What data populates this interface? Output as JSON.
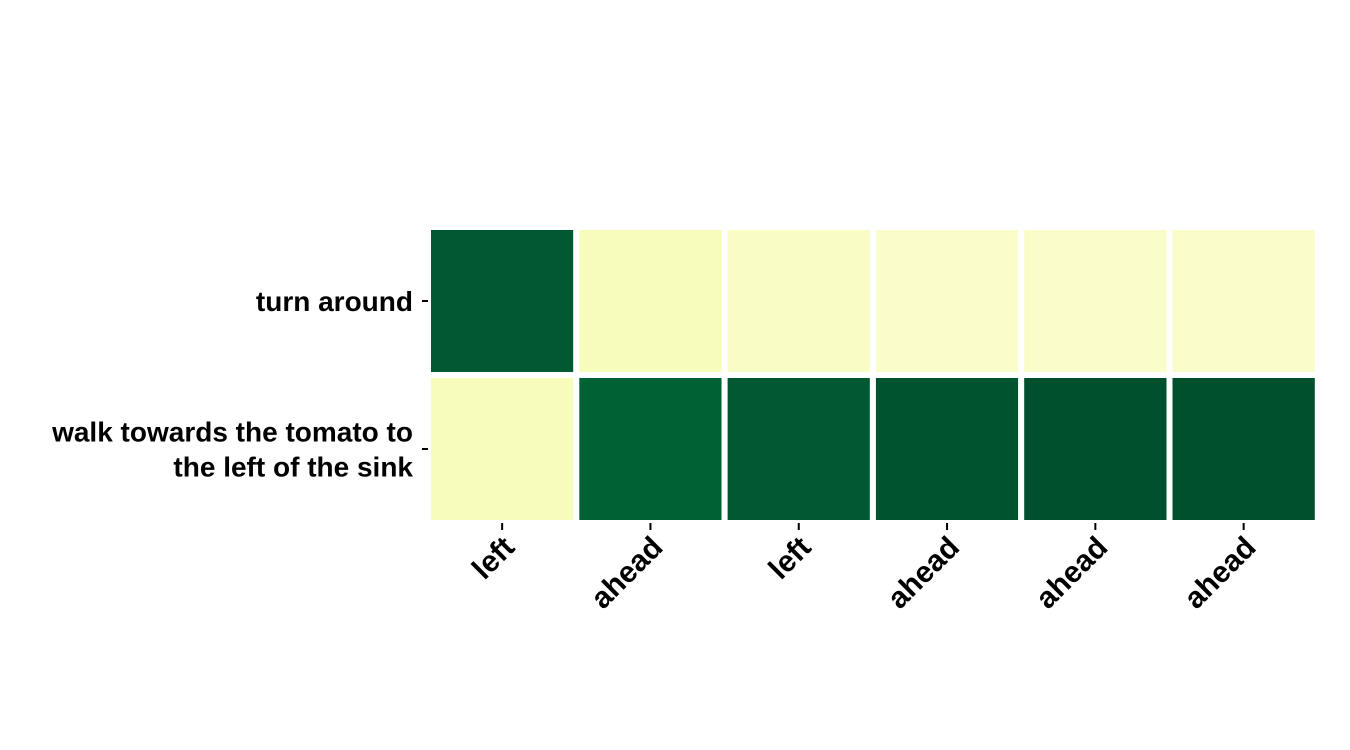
{
  "chart_data": {
    "type": "heatmap",
    "title": "",
    "xlabel": "",
    "ylabel": "",
    "x_categories": [
      "left",
      "ahead",
      "left",
      "ahead",
      "ahead",
      "ahead"
    ],
    "y_categories": [
      [
        "turn around"
      ],
      [
        "walk towards the tomato to",
        "the left of the sink"
      ]
    ],
    "values": [
      [
        0.93,
        0.12,
        0.09,
        0.08,
        0.08,
        0.08
      ],
      [
        0.12,
        0.9,
        0.93,
        0.95,
        0.96,
        0.96
      ]
    ],
    "value_range": [
      0,
      1
    ],
    "colormap": "YlGn",
    "colorbar": false,
    "grid": false
  }
}
